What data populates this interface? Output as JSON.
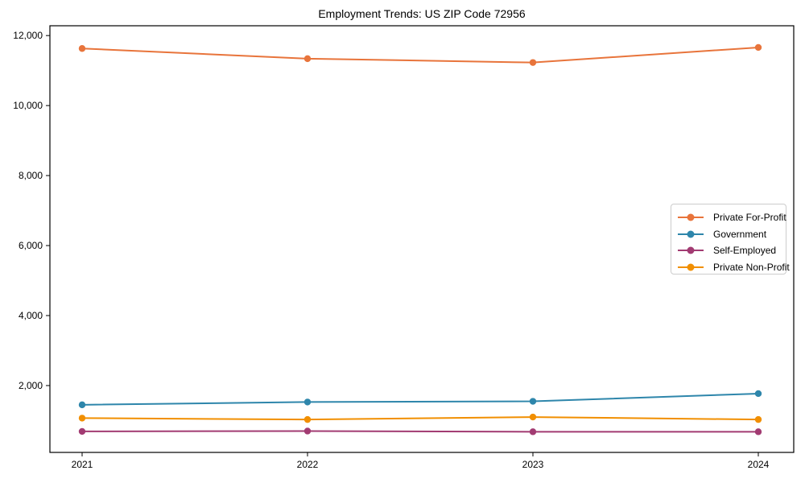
{
  "figure": {
    "background": "#ffffff",
    "axes_edge_color": "#000000",
    "text_color": "#000000",
    "legend_border_color": "#cccccc"
  },
  "chart_data": {
    "type": "line",
    "title": "Employment Trends: US ZIP Code 72956",
    "categories": [
      "2021",
      "2022",
      "2023",
      "2024"
    ],
    "series": [
      {
        "name": "Private For-Profit",
        "color": "#E8743B",
        "values": [
          11630,
          11340,
          11230,
          11660
        ]
      },
      {
        "name": "Government",
        "color": "#2E86AB",
        "values": [
          1450,
          1530,
          1550,
          1770
        ]
      },
      {
        "name": "Self-Employed",
        "color": "#A23B72",
        "values": [
          690,
          700,
          680,
          680
        ]
      },
      {
        "name": "Private Non-Profit",
        "color": "#F18F01",
        "values": [
          1070,
          1030,
          1100,
          1030
        ]
      }
    ],
    "xlabel": "",
    "ylabel": "",
    "ylim": [
      90,
      12280
    ],
    "y_ticks": [
      2000,
      4000,
      6000,
      8000,
      10000,
      12000
    ],
    "y_tick_labels": [
      "2,000",
      "4,000",
      "6,000",
      "8,000",
      "10,000",
      "12,000"
    ],
    "grid": false,
    "marker": "circle",
    "legend_position": "center-right"
  }
}
